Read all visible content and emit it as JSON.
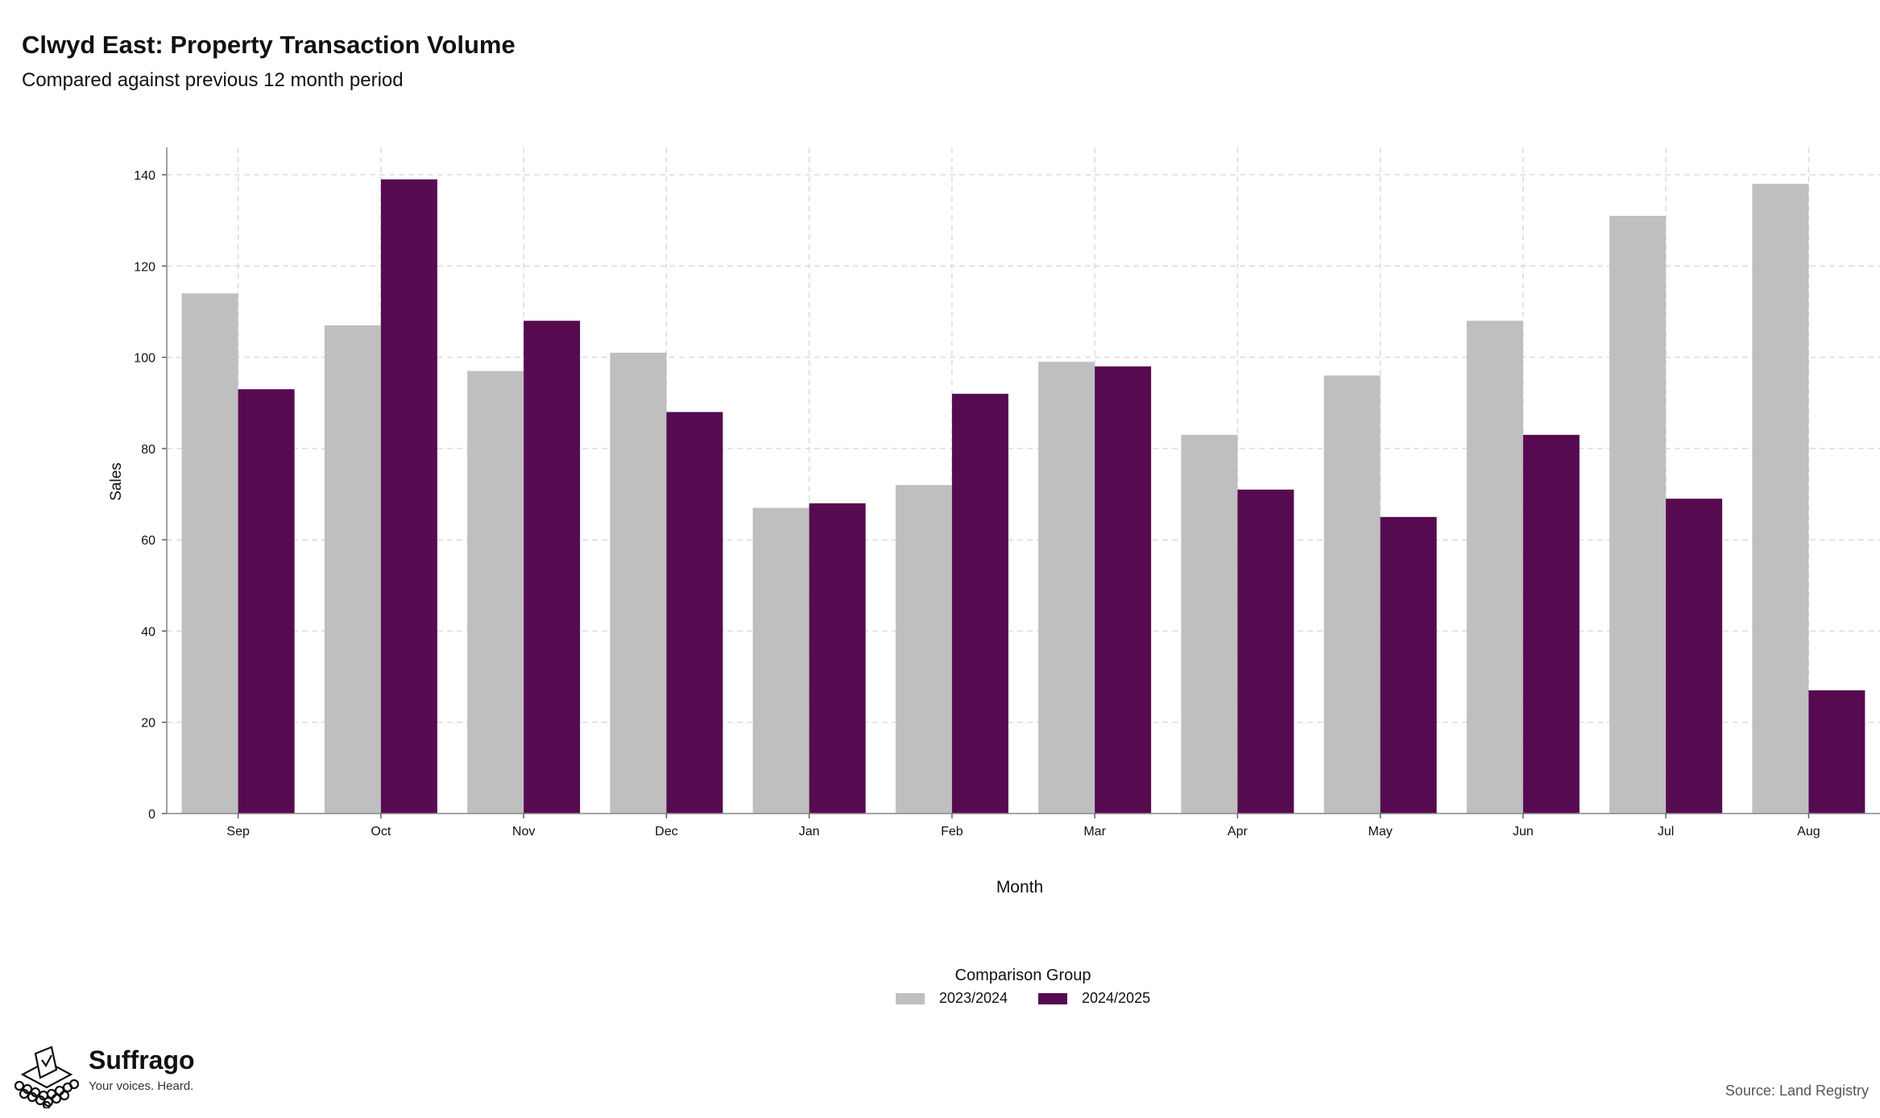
{
  "header": {
    "title": "Clwyd East: Property Transaction Volume",
    "subtitle": "Compared against previous 12 month period"
  },
  "chart_data": {
    "type": "bar",
    "categories": [
      "Sep",
      "Oct",
      "Nov",
      "Dec",
      "Jan",
      "Feb",
      "Mar",
      "Apr",
      "May",
      "Jun",
      "Jul",
      "Aug"
    ],
    "series": [
      {
        "name": "2023/2024",
        "color": "#bfbfbf",
        "values": [
          114,
          107,
          97,
          101,
          67,
          72,
          99,
          83,
          96,
          108,
          131,
          138
        ]
      },
      {
        "name": "2024/2025",
        "color": "#560b51",
        "values": [
          93,
          139,
          108,
          88,
          68,
          92,
          98,
          71,
          65,
          83,
          69,
          27
        ]
      }
    ],
    "xlabel": "Month",
    "ylabel": "Sales",
    "ylim": [
      0,
      146
    ],
    "yticks": [
      0,
      20,
      40,
      60,
      80,
      100,
      120,
      140
    ],
    "grid": true,
    "legend": {
      "title": "Comparison Group",
      "position": "bottom"
    }
  },
  "branding": {
    "name": "Suffrago",
    "tagline": "Your voices. Heard.",
    "logo_icon": "ballot-box-icon"
  },
  "footer": {
    "source": "Source: Land Registry"
  }
}
